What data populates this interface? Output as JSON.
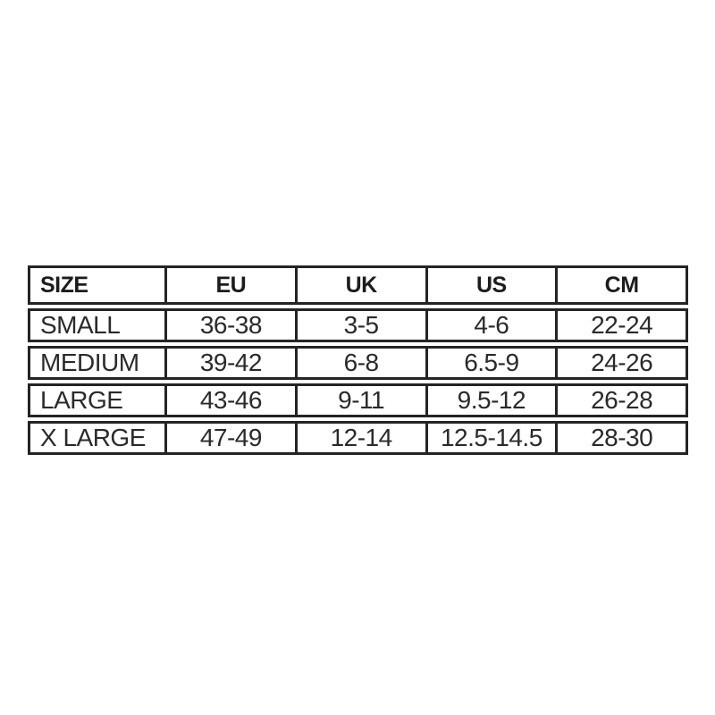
{
  "chart_data": {
    "type": "table",
    "columns": [
      "SIZE",
      "EU",
      "UK",
      "US",
      "CM"
    ],
    "rows": [
      [
        "SMALL",
        "36-38",
        "3-5",
        "4-6",
        "22-24"
      ],
      [
        "MEDIUM",
        "39-42",
        "6-8",
        "6.5-9",
        "24-26"
      ],
      [
        "LARGE",
        "43-46",
        "9-11",
        "9.5-12",
        "26-28"
      ],
      [
        "X LARGE",
        "47-49",
        "12-14",
        "12.5-14.5",
        "28-30"
      ]
    ],
    "layout_hints": {
      "grid": "each row is a separately outlined box with a thin white gap between rows",
      "first_column_align": "left",
      "other_columns_align": "center"
    }
  },
  "colors": {
    "background": "#ffffff",
    "border": "#242424",
    "header_text": "#1c1c1c",
    "cell_text": "#2a2a2a"
  }
}
